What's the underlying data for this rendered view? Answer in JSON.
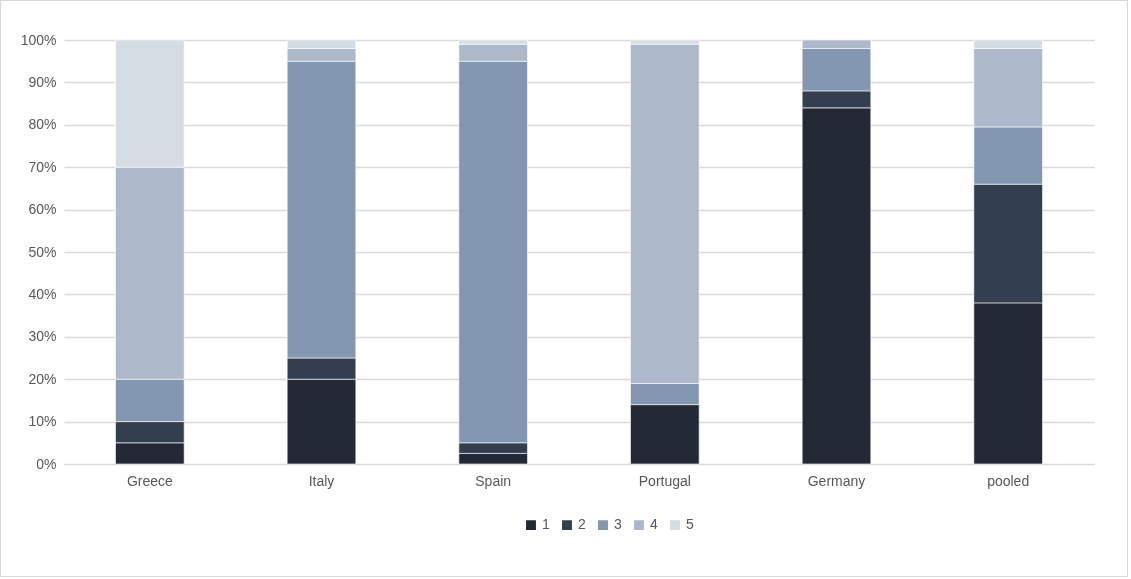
{
  "chart_data": {
    "type": "bar",
    "stacked": true,
    "categories": [
      "Greece",
      "Italy",
      "Spain",
      "Portugal",
      "Germany",
      "pooled"
    ],
    "series": [
      {
        "name": "1",
        "color": "#242a35",
        "values": [
          5,
          20,
          2.5,
          14,
          84,
          38
        ]
      },
      {
        "name": "2",
        "color": "#333f4f",
        "values": [
          5,
          5,
          2.5,
          null,
          4,
          28
        ]
      },
      {
        "name": "3",
        "color": "#8497b0",
        "values": [
          10,
          70,
          90,
          5,
          10,
          13.5
        ]
      },
      {
        "name": "4",
        "color": "#adb9ca",
        "values": [
          50,
          3,
          4,
          80,
          2,
          18.5
        ]
      },
      {
        "name": "5",
        "color": "#d6dce4",
        "values": [
          30,
          2,
          1,
          1,
          null,
          2
        ]
      }
    ],
    "ylim": [
      0,
      100
    ],
    "yticks": [
      {
        "value": 0,
        "label": "0%"
      },
      {
        "value": 10,
        "label": "10%"
      },
      {
        "value": 20,
        "label": "20%"
      },
      {
        "value": 30,
        "label": "30%"
      },
      {
        "value": 40,
        "label": "40%"
      },
      {
        "value": 50,
        "label": "50%"
      },
      {
        "value": 60,
        "label": "60%"
      },
      {
        "value": 70,
        "label": "70%"
      },
      {
        "value": 80,
        "label": "80%"
      },
      {
        "value": 90,
        "label": "90%"
      },
      {
        "value": 100,
        "label": "100%"
      }
    ],
    "grid": "y",
    "legend": "bottom"
  }
}
